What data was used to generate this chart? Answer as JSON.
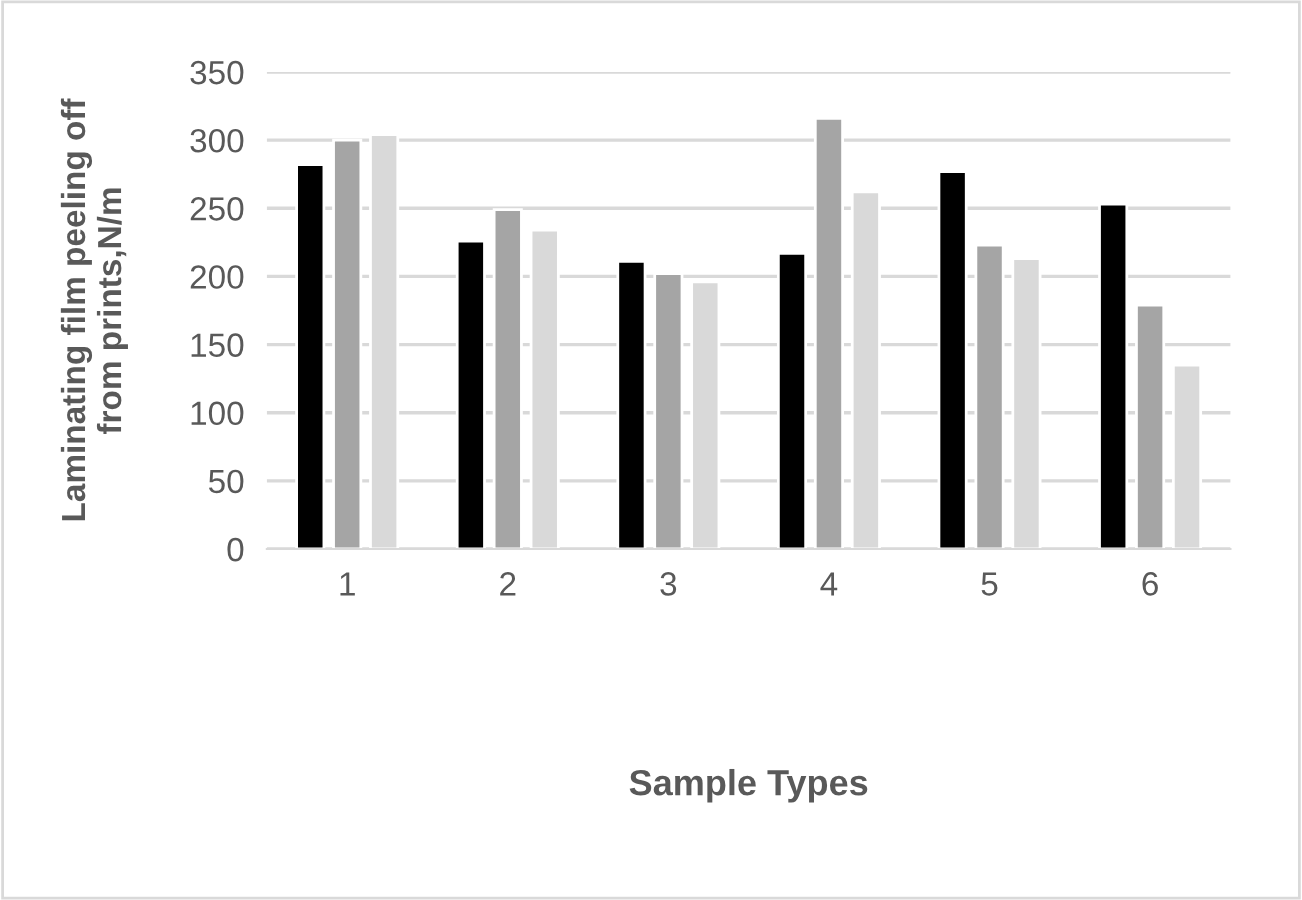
{
  "chart_data": {
    "type": "bar",
    "xlabel": "Sample Types",
    "ylabel": "Laminating film peeling off\nfrom prints,N/m",
    "categories": [
      "1",
      "2",
      "3",
      "4",
      "5",
      "6"
    ],
    "series": [
      {
        "color": "#000000",
        "values": [
          282,
          226,
          211,
          217,
          277,
          253
        ]
      },
      {
        "color": "#a5a5a5",
        "values": [
          300,
          249,
          202,
          316,
          223,
          179
        ]
      },
      {
        "color": "#d9d9d9",
        "values": [
          304,
          234,
          196,
          262,
          213,
          135
        ]
      }
    ],
    "ylim": [
      0,
      350
    ],
    "yticks": [
      0,
      50,
      100,
      150,
      200,
      250,
      300,
      350
    ],
    "grid": "y"
  }
}
